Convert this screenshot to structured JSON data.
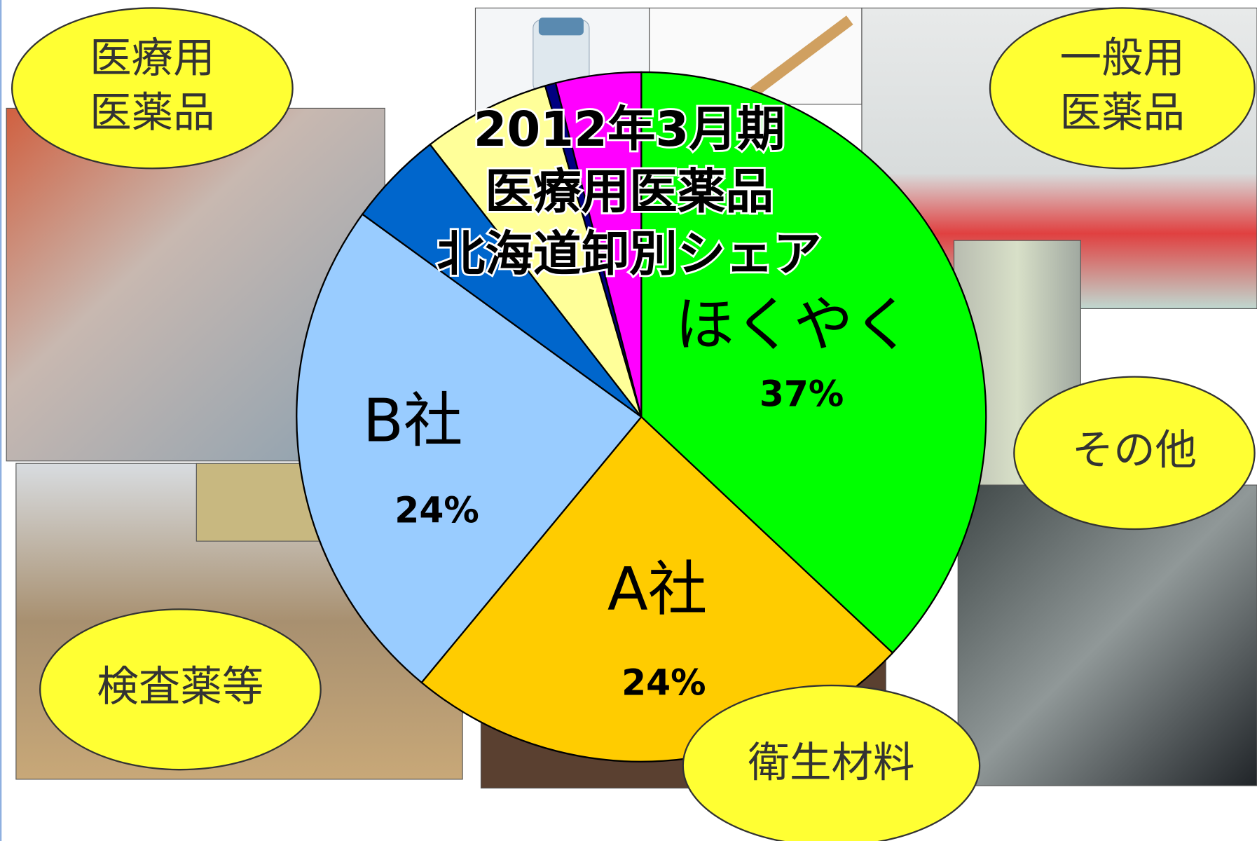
{
  "chart_data": {
    "type": "pie",
    "title": [
      "2012年3月期",
      "医療用医薬品",
      "北海道卸別シェア"
    ],
    "categories": [
      "ほくやく",
      "A社",
      "B社",
      null,
      null,
      null,
      null
    ],
    "values": [
      37,
      24,
      24,
      4.5,
      6,
      0.5,
      4
    ],
    "value_labels": [
      "37%",
      "24%",
      "24%",
      null,
      null,
      null,
      null
    ],
    "colors": [
      "#00ff00",
      "#ffcc00",
      "#99ccff",
      "#0066cc",
      "#ffff99",
      "#000080",
      "#ff00ff"
    ],
    "annotations": [
      [
        "医療用",
        "医薬品"
      ],
      [
        "一般用",
        "医薬品"
      ],
      [
        "その他"
      ],
      [
        "検査薬等"
      ],
      [
        "衛生材料"
      ]
    ]
  }
}
